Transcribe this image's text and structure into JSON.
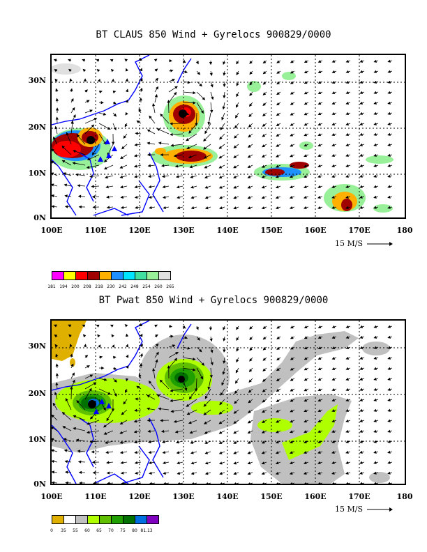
{
  "panel1": {
    "title": "BT CLAUS 850 Wind + Gyrelocs 900829/0000",
    "lat_labels": [
      "30N",
      "20N",
      "10N",
      "0N"
    ],
    "lon_labels": [
      "100E",
      "110E",
      "120E",
      "130E",
      "140E",
      "150E",
      "160E",
      "170E",
      "180"
    ],
    "ref_vector": "15 M/S",
    "colorbar": {
      "colors": [
        "#ff00ff",
        "#ffff00",
        "#ff0000",
        "#a00000",
        "#ffb000",
        "#1e90ff",
        "#00e5ff",
        "#40e0a0",
        "#98f098",
        "#e0e0e0"
      ],
      "labels": [
        "181",
        "194",
        "200",
        "208",
        "218",
        "230",
        "242",
        "248",
        "254",
        "260",
        "265"
      ]
    }
  },
  "panel2": {
    "title": "BT Pwat 850 Wind + Gyrelocs 900829/0000",
    "lat_labels": [
      "30N",
      "20N",
      "10N",
      "0N"
    ],
    "lon_labels": [
      "100E",
      "110E",
      "120E",
      "130E",
      "140E",
      "150E",
      "160E",
      "170E",
      "180"
    ],
    "ref_vector": "15 M/S",
    "colorbar": {
      "colors": [
        "#e0b000",
        "#ffffff",
        "#c0c0c0",
        "#b0ff00",
        "#60c000",
        "#20a000",
        "#007000",
        "#0070e0",
        "#8000c0"
      ],
      "labels": [
        "0",
        "35",
        "55",
        "60",
        "65",
        "70",
        "75",
        "80",
        "81.13"
      ]
    }
  },
  "colors": {
    "coast": "#0000ff",
    "grid": "#000000"
  }
}
